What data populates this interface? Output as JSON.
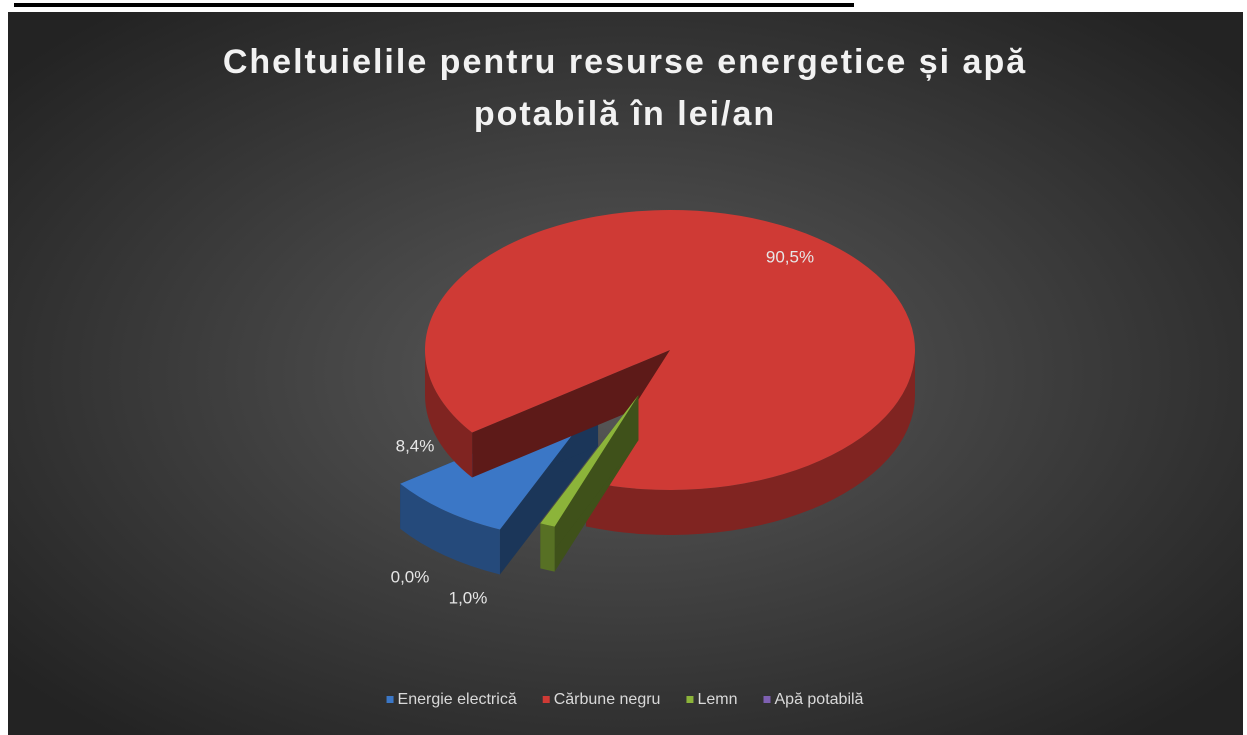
{
  "chart_data": {
    "type": "pie",
    "title": "Cheltuielile pentru resurse energetice și apă potabilă în lei/an",
    "categories": [
      "Energie electrică",
      "Cărbune negru",
      "Lemn",
      "Apă potabilă"
    ],
    "values": [
      8.4,
      90.5,
      1.0,
      0.0
    ],
    "value_labels": [
      "8,4%",
      "90,5%",
      "1,0%",
      "0,0%"
    ],
    "colors": [
      "#3b77c6",
      "#cf3a35",
      "#8cb43a",
      "#7e60b2"
    ],
    "legend": "bottom"
  }
}
